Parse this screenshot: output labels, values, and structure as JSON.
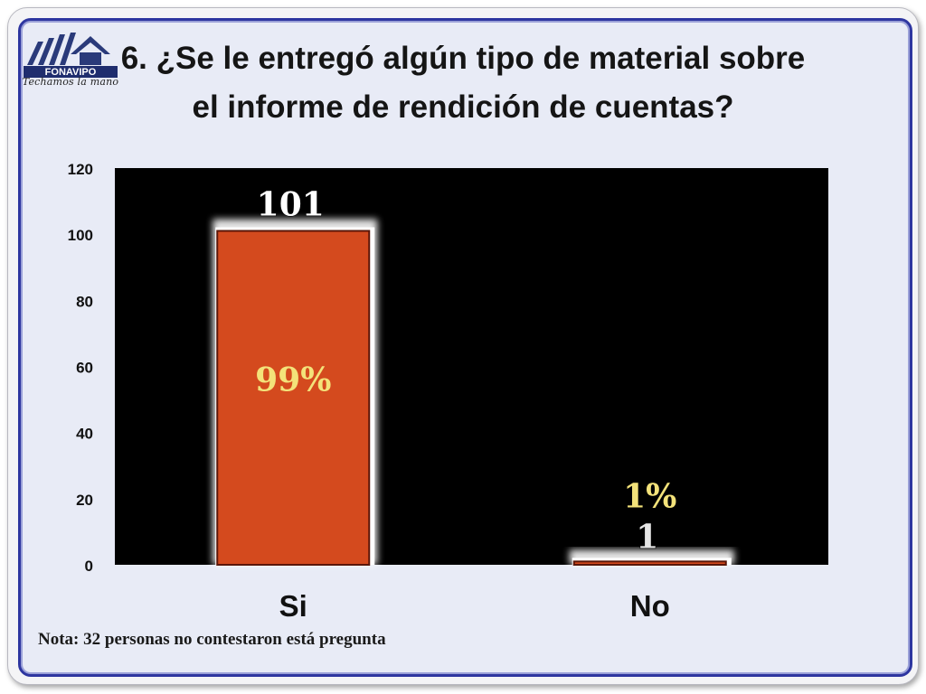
{
  "title": "6. ¿Se le entregó algún tipo de material sobre el informe de rendición de cuentas?",
  "logo": {
    "name": "FONAVIPO",
    "tagline": "Techamos la mano"
  },
  "note": "Nota: 32 personas no contestaron está pregunta",
  "colors": {
    "plot_background": "#000000",
    "bar_fill": "#d44a1e",
    "value_label": "#ffffff",
    "percent_label": "#f3e27a",
    "axis_text": "#111111"
  },
  "chart_data": {
    "type": "bar",
    "categories": [
      "Si",
      "No"
    ],
    "values": [
      101,
      1
    ],
    "percent_labels": [
      "99%",
      "1%"
    ],
    "value_labels": [
      "101",
      "1"
    ],
    "ylim": [
      0,
      120
    ],
    "yticks": [
      0,
      20,
      40,
      60,
      80,
      100,
      120
    ],
    "title": "",
    "xlabel": "",
    "ylabel": "",
    "grid": false,
    "legend": "none"
  }
}
